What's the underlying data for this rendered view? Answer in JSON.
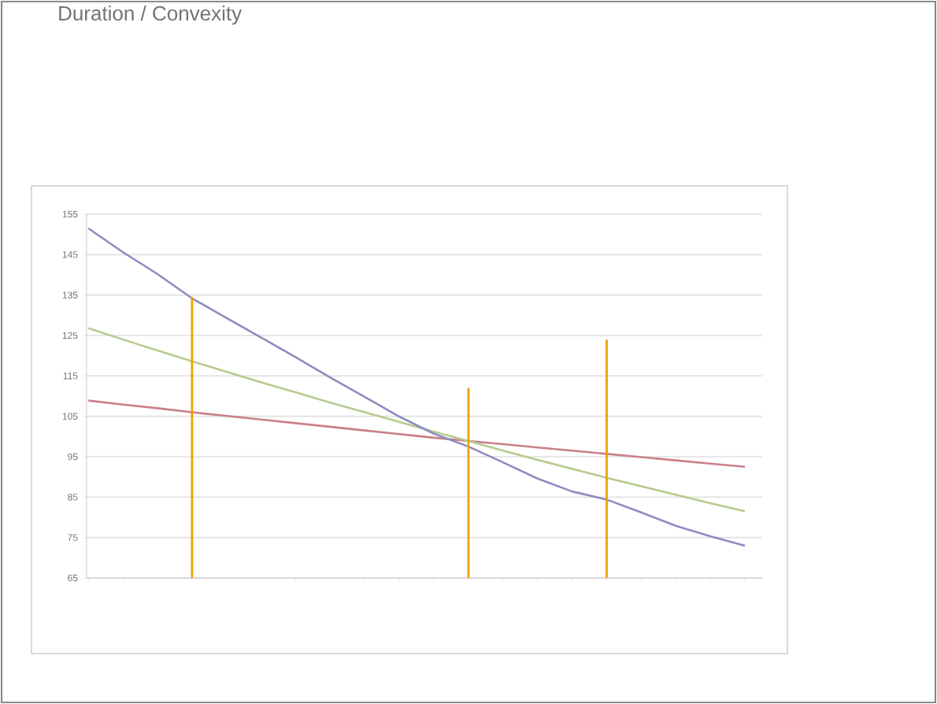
{
  "chart_data": {
    "type": "line",
    "title": "Duration / Convexity",
    "categories": [
      null,
      null,
      null,
      null,
      null,
      null,
      null,
      null,
      null,
      null,
      null,
      null,
      null,
      null,
      null,
      null,
      null,
      null,
      null,
      null
    ],
    "series": [
      {
        "color": "#c9808a",
        "values": [
          108.9,
          107.9,
          107,
          106,
          105.1,
          104.2,
          103.3,
          102.4,
          101.5,
          100.6,
          99.7,
          98.9,
          98.1,
          97.3,
          96.5,
          95.7,
          94.9,
          94.1,
          93.3,
          92.5
        ]
      },
      {
        "color": "#b5cc8e",
        "values": [
          126.8,
          124,
          121.3,
          118.6,
          116,
          113.4,
          110.9,
          108.4,
          106,
          103.6,
          101.2,
          98.9,
          96.5,
          94.2,
          92,
          89.8,
          87.7,
          85.6,
          83.5,
          81.5
        ]
      },
      {
        "color": "#8e8cc0",
        "values": [
          151.5,
          145.6,
          140.2,
          134.2,
          129.3,
          124.5,
          119.6,
          114.6,
          109.8,
          104.9,
          100.7,
          97.5,
          93.6,
          89.6,
          86.4,
          84.4,
          81.2,
          77.9,
          75.3,
          73
        ]
      },
      {
        "type": "bar",
        "color": "#f0a000",
        "values": [
          null,
          null,
          null,
          134.5,
          null,
          null,
          null,
          null,
          null,
          null,
          null,
          112,
          null,
          null,
          null,
          124,
          null,
          null,
          null,
          null
        ]
      }
    ],
    "ylim": [
      65,
      155
    ],
    "yticks": [
      65,
      75,
      85,
      95,
      105,
      115,
      125,
      135,
      145,
      155
    ],
    "grid": "y"
  }
}
